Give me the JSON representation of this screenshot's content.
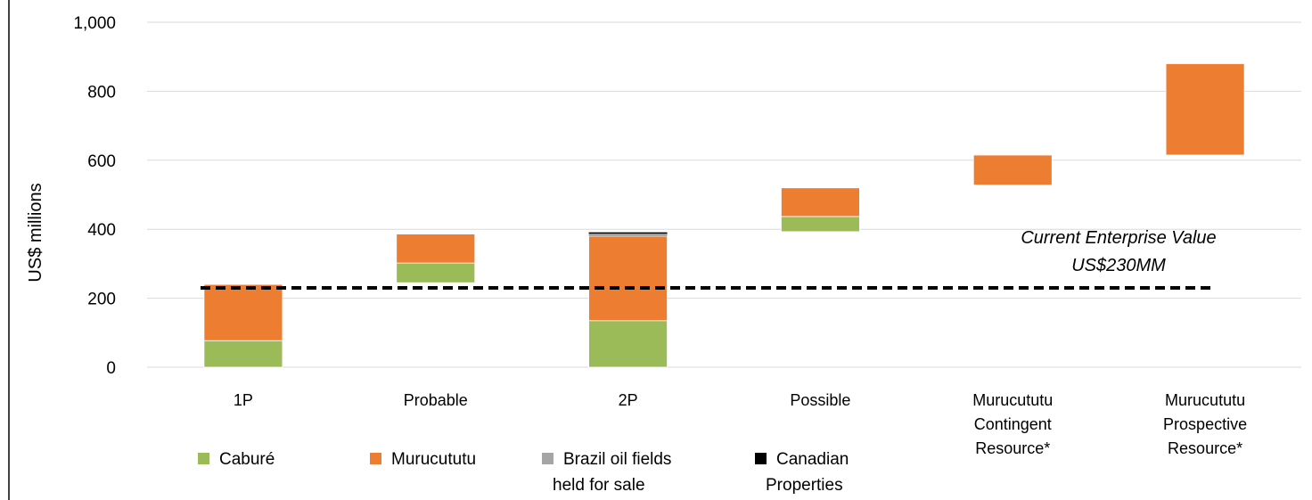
{
  "chart_data": {
    "type": "bar",
    "subtype": "stacked-floating-waterfall",
    "ylabel": "US$ millions",
    "ylim": [
      0,
      1000
    ],
    "yticks": [
      0,
      200,
      400,
      600,
      800,
      1000
    ],
    "ytick_labels": [
      "0",
      "200",
      "400",
      "600",
      "800",
      "1,000"
    ],
    "grid": true,
    "categories": [
      [
        "1P"
      ],
      [
        "Probable"
      ],
      [
        "2P"
      ],
      [
        "Possible"
      ],
      [
        "Murucututu",
        "Contingent",
        "Resource*"
      ],
      [
        "Murucututu",
        "Prospective",
        "Resource*"
      ]
    ],
    "series": [
      {
        "name": "Caburé",
        "color": "#9BBB59",
        "segments": [
          [
            0,
            77
          ],
          [
            245,
            302
          ],
          [
            0,
            135
          ],
          [
            393,
            437
          ],
          null,
          null
        ]
      },
      {
        "name": "Murucututu",
        "color": "#ED7D31",
        "segments": [
          [
            77,
            240
          ],
          [
            302,
            386
          ],
          [
            135,
            380
          ],
          [
            437,
            520
          ],
          [
            528,
            615
          ],
          [
            615,
            880
          ]
        ]
      },
      {
        "name": [
          "Brazil oil fields",
          "held for sale"
        ],
        "color": "#A5A5A5",
        "segments": [
          null,
          null,
          [
            380,
            387
          ],
          null,
          null,
          null
        ]
      },
      {
        "name": [
          "Canadian",
          "Properties"
        ],
        "color": "#000000",
        "segments": [
          null,
          null,
          [
            387,
            391
          ],
          null,
          null,
          null
        ]
      }
    ],
    "reference_line": {
      "value": 230,
      "style": "dashed",
      "color": "#000000",
      "label": [
        "Current Enterprise Value",
        "US$230MM"
      ]
    },
    "legend_position": "bottom"
  }
}
